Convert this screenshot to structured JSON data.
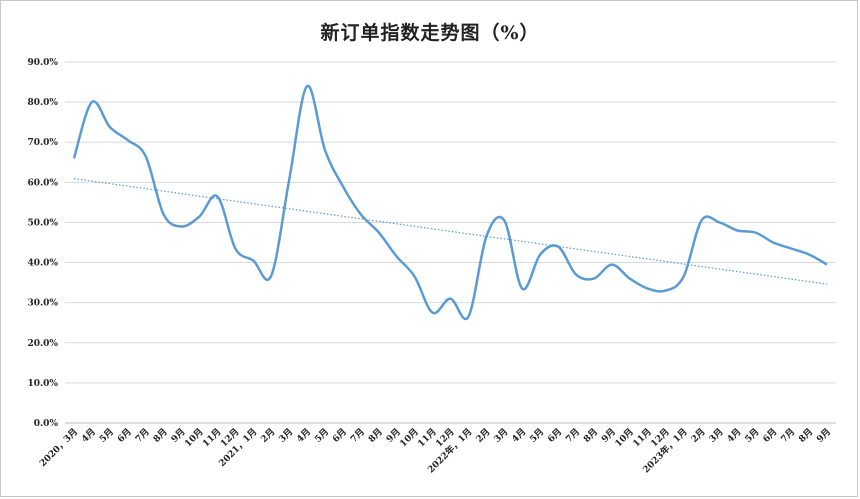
{
  "chart_data": {
    "type": "line",
    "title": "新订单指数走势图（%）",
    "y_ticks": [
      "0.0%",
      "10.0%",
      "20.0%",
      "30.0%",
      "40.0%",
      "50.0%",
      "60.0%",
      "70.0%",
      "80.0%",
      "90.0%"
    ],
    "ylim": [
      0,
      90
    ],
    "grid": true,
    "categories": [
      "2020，3月",
      "4月",
      "5月",
      "6月",
      "7月",
      "8月",
      "9月",
      "10月",
      "11月",
      "12月",
      "2021，1月",
      "2月",
      "3月",
      "4月",
      "5月",
      "6月",
      "7月",
      "8月",
      "9月",
      "10月",
      "11月",
      "12月",
      "2022年，1月",
      "2月",
      "3月",
      "4月",
      "5月",
      "6月",
      "7月",
      "8月",
      "9月",
      "10月",
      "11月",
      "12月",
      "2023年，1月",
      "2月",
      "3月",
      "4月",
      "5月",
      "6月",
      "7月",
      "8月",
      "9月"
    ],
    "series": [
      {
        "values": [
          66.0,
          80.0,
          73.8,
          70.5,
          66.5,
          52.0,
          49.0,
          51.5,
          56.5,
          43.5,
          40.5,
          36.7,
          60.5,
          84.0,
          68.0,
          59.0,
          52.0,
          47.5,
          41.5,
          36.5,
          27.5,
          31.0,
          26.5,
          46.5,
          50.5,
          33.5,
          42.0,
          44.0,
          37.0,
          36.0,
          39.5,
          36.0,
          33.5,
          33.0,
          36.5,
          50.5,
          50.0,
          48.0,
          47.5,
          45.0,
          43.5,
          42.0,
          39.5
        ],
        "color": "#5b9bd5"
      }
    ],
    "trendline": {
      "type": "linear",
      "color": "#5b9bd5",
      "style": "dotted"
    }
  }
}
